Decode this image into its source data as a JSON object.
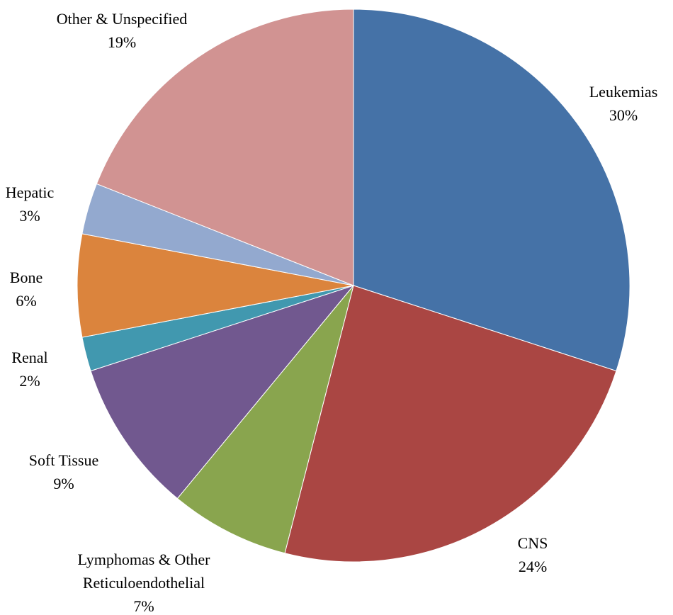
{
  "chart_data": {
    "type": "pie",
    "categories": [
      "Leukemias",
      "CNS",
      "Lymphomas & Other Reticuloendothelial",
      "Soft Tissue",
      "Renal",
      "Bone",
      "Hepatic",
      "Other & Unspecified"
    ],
    "values": [
      30,
      24,
      7,
      9,
      2,
      6,
      3,
      19
    ],
    "value_labels": [
      "30%",
      "24%",
      "7%",
      "9%",
      "2%",
      "6%",
      "3%",
      "19%"
    ],
    "colors": [
      "#4572a7",
      "#aa4643",
      "#89a54e",
      "#71588f",
      "#4198af",
      "#db843d",
      "#93a9cf",
      "#d19392"
    ]
  }
}
